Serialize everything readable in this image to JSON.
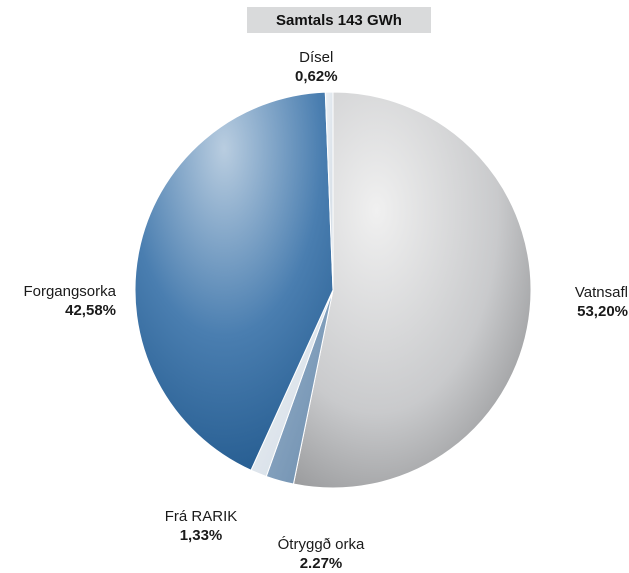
{
  "chart_data": {
    "type": "pie",
    "title": "Samtals 143 GWh",
    "slices": [
      {
        "label": "Vatnsafl",
        "value": 53.2,
        "value_text": "53,20%",
        "color": "#c8c9cb"
      },
      {
        "label": "Ótryggð orka",
        "value": 2.27,
        "value_text": "2.27%",
        "color": "#7a9ab8"
      },
      {
        "label": "Frá RARIK",
        "value": 1.33,
        "value_text": "1,33%",
        "color": "#d6e0ea"
      },
      {
        "label": "Forgangsorka",
        "value": 42.58,
        "value_text": "42,58%",
        "color": "#3f73a6"
      },
      {
        "label": "Dísel",
        "value": 0.62,
        "value_text": "0,62%",
        "color": "#eef2f6"
      }
    ]
  }
}
